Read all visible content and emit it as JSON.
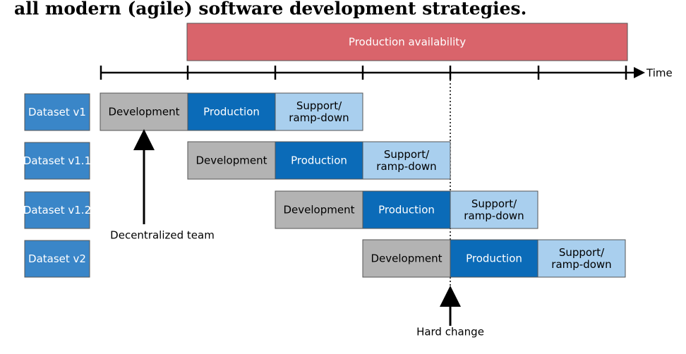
{
  "header": {
    "text": "all modern (agile) software development strategies."
  },
  "banner": {
    "label": "Production availability"
  },
  "timeline": {
    "label": "Time"
  },
  "rows": [
    {
      "dataset": "Dataset v1",
      "phases": [
        [
          "Development"
        ],
        [
          "Production"
        ],
        [
          "Support/",
          "ramp-down"
        ]
      ]
    },
    {
      "dataset": "Dataset v1.1",
      "phases": [
        [
          "Development"
        ],
        [
          "Production"
        ],
        [
          "Support/",
          "ramp-down"
        ]
      ]
    },
    {
      "dataset": "Dataset v1.2",
      "phases": [
        [
          "Development"
        ],
        [
          "Production"
        ],
        [
          "Support/",
          "ramp-down"
        ]
      ]
    },
    {
      "dataset": "Dataset v2",
      "phases": [
        [
          "Development"
        ],
        [
          "Production"
        ],
        [
          "Support/",
          "ramp-down"
        ]
      ]
    }
  ],
  "annotations": {
    "decentralized": "Decentralized team",
    "hard_change": "Hard change"
  }
}
